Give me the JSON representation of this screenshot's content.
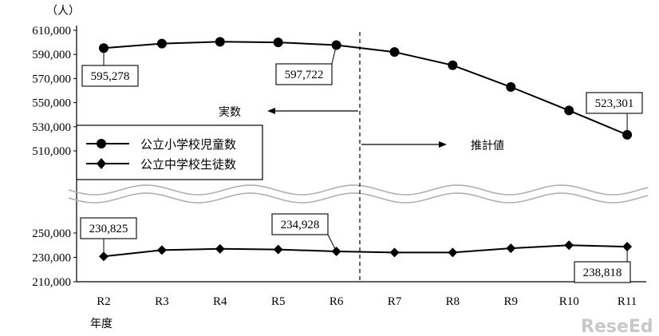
{
  "chart_data": {
    "type": "line",
    "unit_label": "（人）",
    "x_axis_title": "年度",
    "categories": [
      "R2",
      "R3",
      "R4",
      "R5",
      "R6",
      "R7",
      "R8",
      "R9",
      "R10",
      "R11"
    ],
    "series": [
      {
        "name": "公立小学校児童数",
        "marker": "circle",
        "values": [
          595278,
          599000,
          600500,
          600000,
          597722,
          592000,
          581000,
          563000,
          543500,
          523301
        ]
      },
      {
        "name": "公立中学校生徒数",
        "marker": "diamond",
        "values": [
          230825,
          236000,
          237000,
          236500,
          234928,
          234000,
          234000,
          237500,
          240000,
          238818
        ]
      }
    ],
    "upper_axis": {
      "ticks": [
        "610,000",
        "590,000",
        "570,000",
        "550,000",
        "530,000",
        "510,000"
      ],
      "ylim": [
        510000,
        610000
      ]
    },
    "lower_axis": {
      "ticks": [
        "250,000",
        "230,000",
        "210,000"
      ],
      "ylim": [
        210000,
        250000
      ]
    },
    "data_labels": [
      {
        "series": 0,
        "index": 0,
        "text": "595,278"
      },
      {
        "series": 0,
        "index": 4,
        "text": "597,722"
      },
      {
        "series": 0,
        "index": 9,
        "text": "523,301"
      },
      {
        "series": 1,
        "index": 0,
        "text": "230,825"
      },
      {
        "series": 1,
        "index": 4,
        "text": "234,928"
      },
      {
        "series": 1,
        "index": 9,
        "text": "238,818"
      }
    ],
    "annotations": {
      "actual": "実数",
      "estimate": "推計値"
    },
    "legend_position": "left"
  },
  "watermark": "ReseEd"
}
